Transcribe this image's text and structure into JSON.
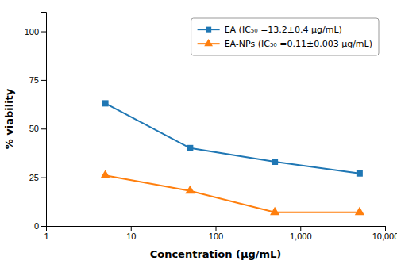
{
  "chart_data": {
    "type": "line",
    "x": [
      5,
      50,
      500,
      5000
    ],
    "series": [
      {
        "name": "EA (IC₅₀ =13.2±0.4 μg/mL)",
        "marker": "square",
        "values": [
          63,
          40,
          33,
          27
        ]
      },
      {
        "name": "EA-NPs (IC₅₀ =0.11±0.003 μg/mL)",
        "marker": "triangle",
        "values": [
          26,
          18,
          7,
          7
        ]
      }
    ],
    "xlabel": "Concentration (μg/mL)",
    "ylabel": "% viability",
    "xlim": [
      1,
      10000
    ],
    "ylim": [
      0,
      110
    ],
    "xticks": [
      1,
      10,
      100,
      {
        "value": 1000,
        "label": "1,000"
      },
      {
        "value": 10000,
        "label": "10,000"
      }
    ],
    "yticks": [
      0,
      25,
      50,
      75,
      100
    ],
    "log": "x",
    "legend": "upper right",
    "grid": false
  }
}
